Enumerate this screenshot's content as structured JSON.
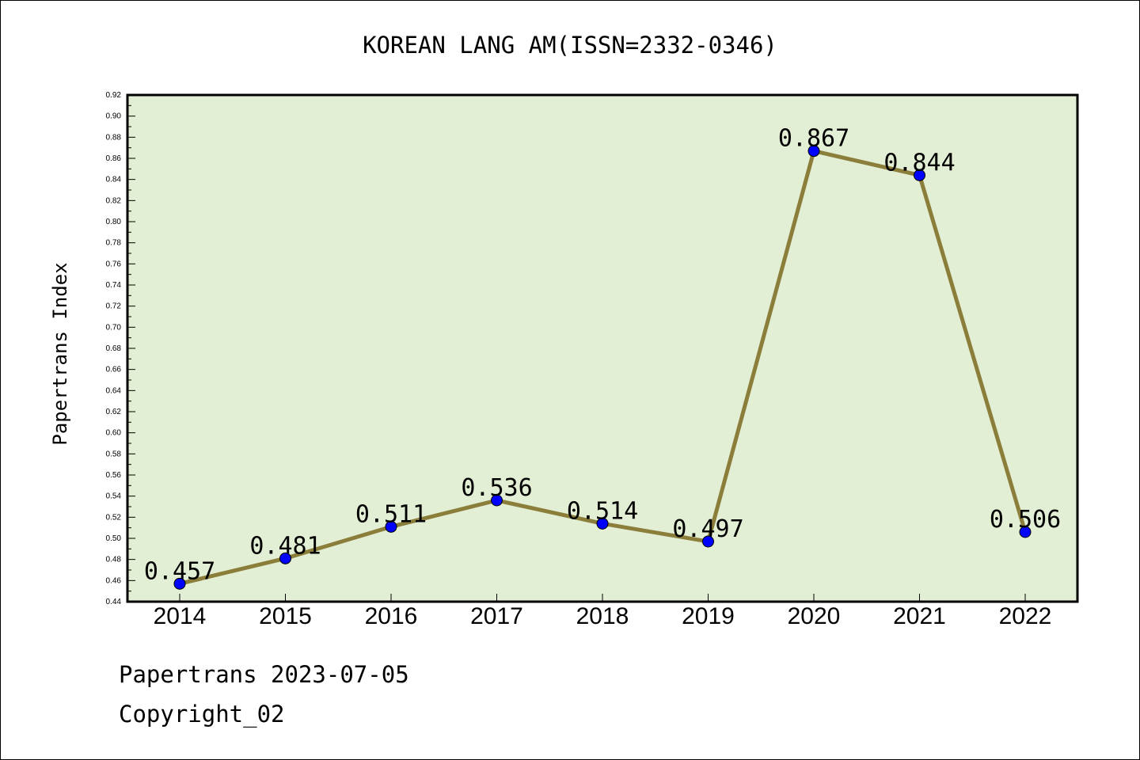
{
  "chart_data": {
    "type": "line",
    "title": "KOREAN LANG AM(ISSN=2332-0346)",
    "ylabel": "Papertrans Index",
    "xlabel": "",
    "categories": [
      "2014",
      "2015",
      "2016",
      "2017",
      "2018",
      "2019",
      "2020",
      "2021",
      "2022"
    ],
    "values": [
      0.457,
      0.481,
      0.511,
      0.536,
      0.514,
      0.497,
      0.867,
      0.844,
      0.506
    ],
    "data_labels": [
      "0.457",
      "0.481",
      "0.511",
      "0.536",
      "0.514",
      "0.497",
      "0.867",
      "0.844",
      "0.506"
    ],
    "ylim": [
      0.44,
      0.92
    ],
    "yticks": [
      "0.44",
      "0.46",
      "0.48",
      "0.50",
      "0.52",
      "0.54",
      "0.56",
      "0.58",
      "0.60",
      "0.62",
      "0.64",
      "0.66",
      "0.68",
      "0.70",
      "0.72",
      "0.74",
      "0.76",
      "0.78",
      "0.80",
      "0.82",
      "0.84",
      "0.86",
      "0.88",
      "0.90",
      "0.92"
    ],
    "grid": false,
    "colors": {
      "plot_background": "#e2efd5",
      "line": "#8b7d3a",
      "marker": "#0000ff"
    }
  },
  "footer": {
    "line1": "Papertrans 2023-07-05",
    "line2": "Copyright_02"
  }
}
